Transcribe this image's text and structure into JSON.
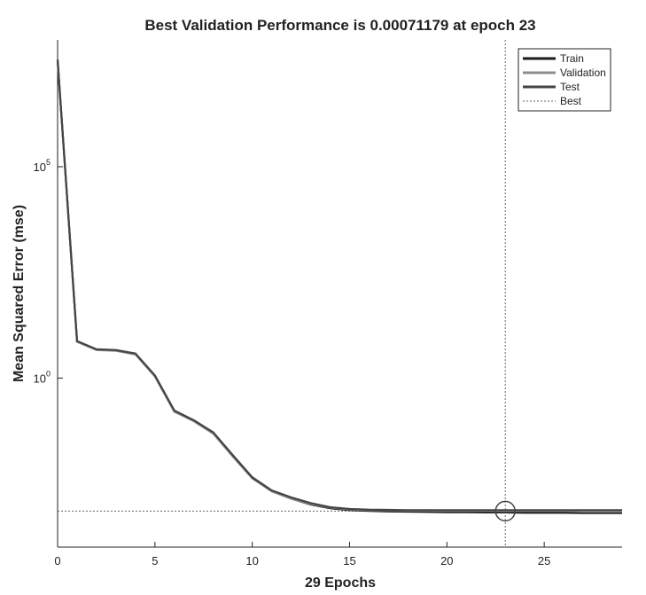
{
  "chart_data": {
    "type": "line",
    "title": "Best Validation Performance is 0.00071179 at epoch 23",
    "x_label": "29 Epochs",
    "y_label": "Mean Squared Error  (mse)",
    "x": [
      0,
      1,
      2,
      3,
      4,
      5,
      6,
      7,
      8,
      9,
      10,
      11,
      12,
      13,
      14,
      15,
      16,
      17,
      18,
      19,
      20,
      21,
      22,
      23,
      24,
      25,
      26,
      27,
      28,
      29
    ],
    "series": [
      {
        "name": "Train",
        "color": "#1a1a1a",
        "values": [
          33000000,
          7.3,
          4.7,
          4.5,
          3.7,
          1.1,
          0.16,
          0.1,
          0.05,
          0.014,
          0.0043,
          0.0021,
          0.0014,
          0.00102,
          0.00083,
          0.00075,
          0.00072,
          0.0007,
          0.00069,
          0.00068,
          0.00067,
          0.00067,
          0.00066,
          0.00066,
          0.00065,
          0.00065,
          0.00065,
          0.00064,
          0.00064,
          0.00064
        ]
      },
      {
        "name": "Validation",
        "color": "#8c8c8c",
        "values": [
          33000000,
          7.2,
          4.6,
          4.4,
          3.6,
          1.1,
          0.16,
          0.095,
          0.048,
          0.014,
          0.0044,
          0.0021,
          0.0014,
          0.00105,
          0.00086,
          0.00078,
          0.00075,
          0.00074,
          0.00073,
          0.00073,
          0.00072,
          0.00072,
          0.00072,
          0.00071179,
          0.00072,
          0.00072,
          0.00072,
          0.00073,
          0.00073,
          0.00073
        ]
      },
      {
        "name": "Test",
        "color": "#444444",
        "values": [
          34000000,
          7.5,
          4.8,
          4.6,
          3.8,
          1.15,
          0.17,
          0.1,
          0.052,
          0.015,
          0.0045,
          0.0022,
          0.0015,
          0.0011,
          0.00088,
          0.0008,
          0.00077,
          0.00076,
          0.00075,
          0.00075,
          0.00075,
          0.00075,
          0.00075,
          0.00075,
          0.00075,
          0.00075,
          0.00075,
          0.00075,
          0.00075,
          0.00075
        ]
      }
    ],
    "best": {
      "name": "Best",
      "epoch": 23,
      "value": 0.00071179,
      "color": "#666666"
    },
    "xlim": [
      0,
      29
    ],
    "xticks": [
      0,
      5,
      10,
      15,
      20,
      25
    ],
    "ylim": [
      0.0001,
      100000000
    ],
    "y_scale": "log",
    "yticks": [
      {
        "value": 1,
        "label": "10",
        "exponent": "0"
      },
      {
        "value": 100000,
        "label": "10",
        "exponent": "5"
      }
    ],
    "legend": "top-right"
  }
}
